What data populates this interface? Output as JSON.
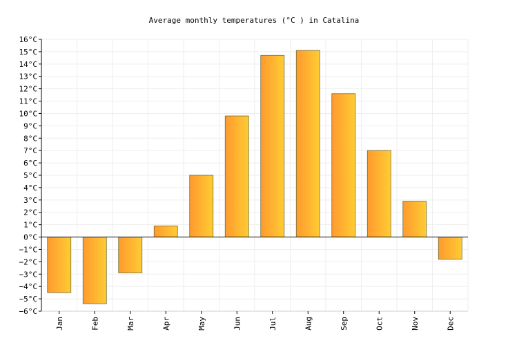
{
  "chart_data": {
    "type": "bar",
    "title": "Average monthly temperatures (°C ) in Catalina",
    "xlabel": "",
    "ylabel": "",
    "categories": [
      "Jan",
      "Feb",
      "Mar",
      "Apr",
      "May",
      "Jun",
      "Jul",
      "Aug",
      "Sep",
      "Oct",
      "Nov",
      "Dec"
    ],
    "values": [
      -4.5,
      -5.4,
      -2.9,
      0.9,
      5.0,
      9.8,
      14.7,
      15.1,
      11.6,
      7.0,
      2.9,
      -1.8
    ],
    "ylim": [
      -6,
      16
    ],
    "ytick_step": 1,
    "ytick_labels": [
      "−6°C",
      "−5°C",
      "−4°C",
      "−3°C",
      "−2°C",
      "−1°C",
      "0°C",
      "1°C",
      "2°C",
      "3°C",
      "4°C",
      "5°C",
      "6°C",
      "7°C",
      "8°C",
      "9°C",
      "10°C",
      "11°C",
      "12°C",
      "13°C",
      "14°C",
      "15°C",
      "16°C"
    ],
    "grid": true,
    "colors": {
      "bar_start": "#ff9a2e",
      "bar_end": "#ffcc33",
      "bar_stroke": "#6b6b3a",
      "grid": "#eeeeee",
      "axis": "#000000"
    }
  }
}
